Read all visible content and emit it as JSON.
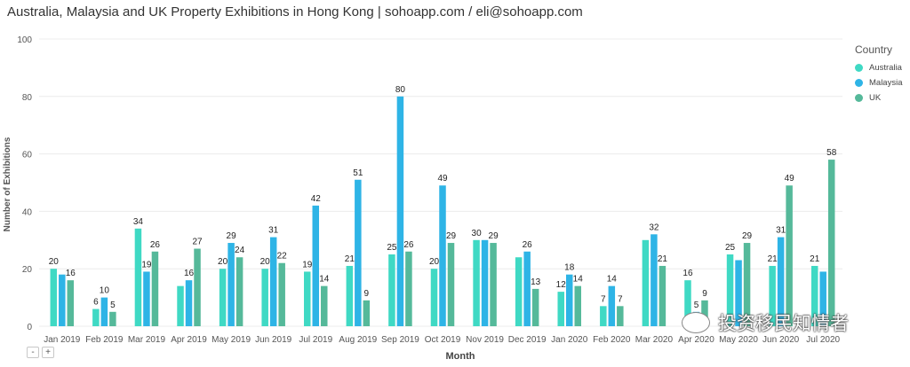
{
  "title": "Australia, Malaysia and UK Property Exhibitions in Hong Kong | sohoapp.com / eli@sohoapp.com",
  "legend": {
    "title": "Country"
  },
  "zoom": {
    "minus": "-",
    "plus": "+"
  },
  "watermark": {
    "text": "投资移民知情者",
    "icon": "wechat-logo-icon"
  },
  "chart_data": {
    "type": "bar",
    "title": "Australia, Malaysia and UK Property Exhibitions in Hong Kong | sohoapp.com / eli@sohoapp.com",
    "xlabel": "Month",
    "ylabel": "Number of Exhibitions",
    "ylim": [
      0,
      100
    ],
    "yticks": [
      0,
      20,
      40,
      60,
      80,
      100
    ],
    "grid": true,
    "legend_position": "top-right",
    "categories": [
      "Jan 2019",
      "Feb 2019",
      "Mar 2019",
      "Apr 2019",
      "May 2019",
      "Jun 2019",
      "Jul 2019",
      "Aug 2019",
      "Sep 2019",
      "Oct 2019",
      "Nov 2019",
      "Dec 2019",
      "Jan 2020",
      "Feb 2020",
      "Mar 2020",
      "Apr 2020",
      "May 2020",
      "Jun 2020",
      "Jul 2020"
    ],
    "series": [
      {
        "name": "Australia",
        "color": "#3fd9c4",
        "values": [
          20,
          6,
          34,
          14,
          20,
          20,
          19,
          21,
          25,
          20,
          30,
          24,
          12,
          7,
          30,
          16,
          25,
          21,
          21
        ],
        "labels": [
          20,
          6,
          34,
          null,
          20,
          20,
          19,
          21,
          25,
          20,
          30,
          null,
          12,
          7,
          null,
          16,
          25,
          21,
          21
        ]
      },
      {
        "name": "Malaysia",
        "color": "#2eb4e6",
        "values": [
          18,
          10,
          19,
          16,
          29,
          31,
          42,
          51,
          80,
          49,
          30,
          26,
          18,
          14,
          32,
          5,
          23,
          31,
          19
        ],
        "labels": [
          null,
          10,
          19,
          16,
          29,
          31,
          42,
          51,
          80,
          49,
          null,
          26,
          18,
          14,
          32,
          5,
          null,
          31,
          null
        ]
      },
      {
        "name": "UK",
        "color": "#55b99a",
        "values": [
          16,
          5,
          26,
          27,
          24,
          22,
          14,
          9,
          26,
          29,
          29,
          13,
          14,
          7,
          21,
          9,
          29,
          49,
          58
        ],
        "labels": [
          16,
          5,
          26,
          27,
          24,
          22,
          14,
          9,
          26,
          29,
          29,
          13,
          14,
          7,
          21,
          9,
          29,
          49,
          58
        ]
      }
    ]
  }
}
